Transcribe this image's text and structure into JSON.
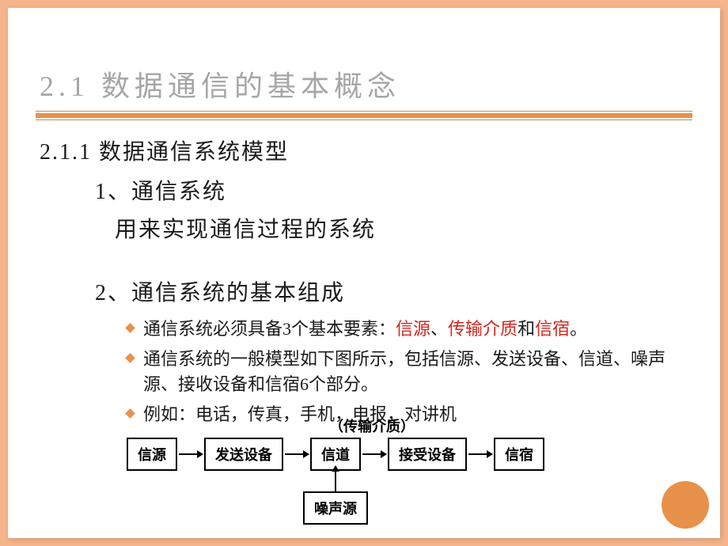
{
  "slide": {
    "title": "2.1 数据通信的基本概念",
    "section": "2.1.1 数据通信系统模型",
    "item1_header": "1、通信系统",
    "item1_text": "用来实现通信过程的系统",
    "item2_header": "2、通信系统的基本组成",
    "bullets": {
      "b1_pre": "通信系统必须具备3个基本要素：",
      "b1_hl1": "信源",
      "b1_sep1": "、",
      "b1_hl2": "传输介质",
      "b1_mid": "和",
      "b1_hl3": "信宿",
      "b1_end": "。",
      "b2": "通信系统的一般模型如下图所示，包括信源、发送设备、信道、噪声源、接收设备和信宿6个部分。",
      "b3": "例如：电话，传真，手机，电报，对讲机"
    },
    "flowchart": {
      "top_label": "（传输介质）",
      "boxes": [
        "信源",
        "发送设备",
        "信道",
        "接受设备",
        "信宿"
      ],
      "noise": "噪声源",
      "box_border_color": "#000000",
      "box_font_size": 18,
      "arrow_color": "#000000"
    },
    "colors": {
      "background_outer": "#f5b48a",
      "background_slide": "#ffffff",
      "title_color": "#a6a6a6",
      "divider_color": "#e8914a",
      "text_color": "#1a1a1a",
      "highlight_color": "#d4261e",
      "bullet_diamond_color": "#e8914a",
      "accent_circle_color": "#e8914a"
    }
  }
}
